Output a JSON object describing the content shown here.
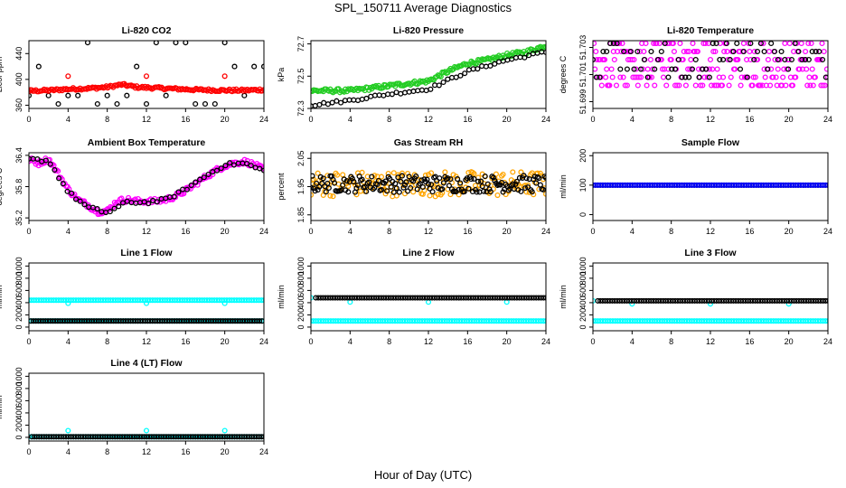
{
  "figure": {
    "title": "SPL_150711  Average Diagnostics",
    "xlabel": "Hour of Day (UTC)"
  },
  "colors": {
    "black": "#000000",
    "red": "#ff0000",
    "green": "#22cc22",
    "magenta": "#ff00ff",
    "orange": "#ffa500",
    "cyan": "#00ffff",
    "blue": "#0000ff"
  },
  "chart_data": [
    {
      "type": "scatter",
      "title": "Li-820 CO2",
      "ylabel": "Licor ppm",
      "xlim": [
        0,
        24
      ],
      "ylim": [
        355,
        460
      ],
      "xticks": [
        0,
        4,
        8,
        12,
        16,
        20,
        24
      ],
      "yticks": [
        360,
        400,
        440
      ],
      "series": [
        {
          "color": "black",
          "style": "discrete",
          "levels": [
            457,
            420,
            375,
            362
          ],
          "x_step": 1.0
        },
        {
          "color": "red",
          "style": "band",
          "points": [
            [
              0,
              382
            ],
            [
              2,
              383
            ],
            [
              4,
              385
            ],
            [
              6,
              386
            ],
            [
              8,
              388
            ],
            [
              9.5,
              392
            ],
            [
              11,
              388
            ],
            [
              14,
              386
            ],
            [
              17,
              384
            ],
            [
              20,
              383
            ],
            [
              22,
              383
            ],
            [
              24,
              384
            ]
          ],
          "spread": 2
        },
        {
          "color": "red",
          "style": "spikes",
          "points": [
            [
              4,
              405
            ],
            [
              12,
              405
            ],
            [
              20,
              405
            ]
          ]
        }
      ]
    },
    {
      "type": "scatter",
      "title": "Li-820 Pressure",
      "ylabel": "kPa",
      "xlim": [
        0,
        24
      ],
      "ylim": [
        72.3,
        72.72
      ],
      "xticks": [
        0,
        4,
        8,
        12,
        16,
        20,
        24
      ],
      "yticks": [
        72.3,
        72.5,
        72.7
      ],
      "series": [
        {
          "color": "green",
          "style": "band",
          "points": [
            [
              0,
              72.41
            ],
            [
              4,
              72.41
            ],
            [
              8,
              72.44
            ],
            [
              12,
              72.47
            ],
            [
              14,
              72.53
            ],
            [
              16,
              72.58
            ],
            [
              18,
              72.6
            ],
            [
              20,
              72.63
            ],
            [
              22,
              72.65
            ],
            [
              24,
              72.69
            ]
          ],
          "spread": 0.012
        },
        {
          "color": "black",
          "style": "line-points",
          "points": [
            [
              0,
              72.32
            ],
            [
              4,
              72.35
            ],
            [
              8,
              72.39
            ],
            [
              12,
              72.42
            ],
            [
              16,
              72.53
            ],
            [
              20,
              72.6
            ],
            [
              24,
              72.65
            ]
          ],
          "spread": 0.008
        }
      ]
    },
    {
      "type": "scatter",
      "title": "Li-820 Temperature",
      "ylabel": "degrees C",
      "xlim": [
        0,
        24
      ],
      "ylim": [
        51.6985,
        51.7035
      ],
      "xticks": [
        0,
        4,
        8,
        12,
        16,
        20,
        24
      ],
      "yticks": [
        51.699,
        51.701,
        51.703
      ],
      "series": [
        {
          "color": "magenta",
          "style": "discrete",
          "levels": [
            51.7033,
            51.7027,
            51.7021,
            51.7014,
            51.7008,
            51.7002
          ],
          "x_step": 0.1
        },
        {
          "color": "black",
          "style": "discrete",
          "levels": [
            51.7033,
            51.7027,
            51.7021,
            51.7014,
            51.7008
          ],
          "x_step": 0.35
        }
      ]
    },
    {
      "type": "scatter",
      "title": "Ambient Box Temperature",
      "ylabel": "degrees C",
      "xlim": [
        0,
        24
      ],
      "ylim": [
        35.15,
        36.45
      ],
      "xticks": [
        0,
        4,
        8,
        12,
        16,
        20,
        24
      ],
      "yticks": [
        35.2,
        35.8,
        36.4
      ],
      "series": [
        {
          "color": "magenta",
          "style": "band",
          "points": [
            [
              0,
              36.32
            ],
            [
              1,
              36.25
            ],
            [
              2,
              36.33
            ],
            [
              3,
              36.05
            ],
            [
              4,
              35.75
            ],
            [
              5,
              35.55
            ],
            [
              6,
              35.45
            ],
            [
              7,
              35.32
            ],
            [
              8,
              35.33
            ],
            [
              9,
              35.52
            ],
            [
              10,
              35.55
            ],
            [
              11,
              35.52
            ],
            [
              12,
              35.52
            ],
            [
              13,
              35.52
            ],
            [
              14,
              35.55
            ],
            [
              15,
              35.62
            ],
            [
              16,
              35.72
            ],
            [
              17,
              35.85
            ],
            [
              18,
              35.98
            ],
            [
              19,
              36.1
            ],
            [
              20,
              36.2
            ],
            [
              21,
              36.25
            ],
            [
              22,
              36.28
            ],
            [
              23,
              36.22
            ],
            [
              24,
              36.12
            ]
          ],
          "spread": 0.05
        },
        {
          "color": "black",
          "style": "line-points",
          "points": [
            [
              0,
              36.32
            ],
            [
              2,
              36.3
            ],
            [
              4,
              35.7
            ],
            [
              6,
              35.4
            ],
            [
              8,
              35.3
            ],
            [
              10,
              35.5
            ],
            [
              12,
              35.5
            ],
            [
              14,
              35.55
            ],
            [
              16,
              35.75
            ],
            [
              18,
              36.0
            ],
            [
              20,
              36.22
            ],
            [
              22,
              36.25
            ],
            [
              24,
              36.1
            ]
          ],
          "spread": 0.03
        }
      ]
    },
    {
      "type": "scatter",
      "title": "Gas Stream RH",
      "ylabel": "percent",
      "xlim": [
        0,
        24
      ],
      "ylim": [
        1.83,
        2.07
      ],
      "xticks": [
        0,
        4,
        8,
        12,
        16,
        20,
        24
      ],
      "yticks": [
        1.85,
        1.95,
        2.05
      ],
      "series": [
        {
          "color": "orange",
          "style": "band",
          "points": [
            [
              0,
              1.96
            ],
            [
              12,
              1.96
            ],
            [
              24,
              1.96
            ]
          ],
          "spread": 0.045
        },
        {
          "color": "black",
          "style": "band",
          "points": [
            [
              0,
              1.96
            ],
            [
              12,
              1.96
            ],
            [
              24,
              1.96
            ]
          ],
          "spread": 0.03
        }
      ]
    },
    {
      "type": "scatter",
      "title": "Sample Flow",
      "ylabel": "ml/min",
      "xlim": [
        0,
        24
      ],
      "ylim": [
        -20,
        210
      ],
      "xticks": [
        0,
        4,
        8,
        12,
        16,
        20,
        24
      ],
      "yticks": [
        0,
        100,
        200
      ],
      "series": [
        {
          "color": "black",
          "style": "band",
          "points": [
            [
              0,
              100
            ],
            [
              24,
              100
            ]
          ],
          "spread": 0
        },
        {
          "color": "blue",
          "style": "band",
          "points": [
            [
              0,
              100
            ],
            [
              24,
              100
            ]
          ],
          "spread": 0
        }
      ]
    },
    {
      "type": "scatter",
      "title": "Line 1 Flow",
      "ylabel": "ml/min",
      "xlim": [
        0,
        24
      ],
      "ylim": [
        -60,
        1050
      ],
      "xticks": [
        0,
        4,
        8,
        12,
        16,
        20,
        24
      ],
      "yticks": [
        0,
        200,
        400,
        600,
        800,
        1000
      ],
      "series": [
        {
          "color": "cyan",
          "style": "band",
          "points": [
            [
              0,
              440
            ],
            [
              24,
              440
            ]
          ],
          "spread": 0
        },
        {
          "color": "cyan",
          "style": "spikes",
          "points": [
            [
              4,
              390
            ],
            [
              12,
              390
            ],
            [
              20,
              390
            ]
          ]
        },
        {
          "color": "cyan",
          "style": "band",
          "points": [
            [
              0,
              100
            ],
            [
              24,
              100
            ]
          ],
          "spread": 0
        },
        {
          "color": "black",
          "style": "band",
          "points": [
            [
              0.2,
              100
            ],
            [
              23.8,
              100
            ]
          ],
          "spread": 0
        }
      ]
    },
    {
      "type": "scatter",
      "title": "Line 2 Flow",
      "ylabel": "ml/min",
      "xlim": [
        0,
        24
      ],
      "ylim": [
        -60,
        1050
      ],
      "xticks": [
        0,
        4,
        8,
        12,
        16,
        20,
        24
      ],
      "yticks": [
        0,
        200,
        400,
        600,
        800,
        1000
      ],
      "series": [
        {
          "color": "cyan",
          "style": "band",
          "points": [
            [
              0,
              100
            ],
            [
              24,
              100
            ]
          ],
          "spread": 0
        },
        {
          "color": "cyan",
          "style": "spikes",
          "points": [
            [
              0,
              480
            ],
            [
              4,
              410
            ],
            [
              12,
              410
            ],
            [
              20,
              410
            ]
          ]
        },
        {
          "color": "black",
          "style": "band",
          "points": [
            [
              0.5,
              480
            ],
            [
              24,
              480
            ]
          ],
          "spread": 0
        }
      ]
    },
    {
      "type": "scatter",
      "title": "Line 3 Flow",
      "ylabel": "ml/min",
      "xlim": [
        0,
        24
      ],
      "ylim": [
        -60,
        1050
      ],
      "xticks": [
        0,
        4,
        8,
        12,
        16,
        20,
        24
      ],
      "yticks": [
        0,
        200,
        400,
        600,
        800,
        1000
      ],
      "series": [
        {
          "color": "cyan",
          "style": "band",
          "points": [
            [
              0,
              100
            ],
            [
              24,
              100
            ]
          ],
          "spread": 0
        },
        {
          "color": "cyan",
          "style": "spikes",
          "points": [
            [
              0,
              430
            ],
            [
              4,
              380
            ],
            [
              12,
              380
            ],
            [
              20,
              380
            ]
          ]
        },
        {
          "color": "black",
          "style": "band",
          "points": [
            [
              0.5,
              430
            ],
            [
              24,
              430
            ]
          ],
          "spread": 0
        }
      ]
    },
    {
      "type": "scatter",
      "title": "Line 4 (LT) Flow",
      "ylabel": "ml/min",
      "xlim": [
        0,
        24
      ],
      "ylim": [
        -60,
        1050
      ],
      "xticks": [
        0,
        4,
        8,
        12,
        16,
        20,
        24
      ],
      "yticks": [
        0,
        200,
        400,
        600,
        800,
        1000
      ],
      "series": [
        {
          "color": "cyan",
          "style": "band",
          "points": [
            [
              0,
              10
            ],
            [
              24,
              10
            ]
          ],
          "spread": 0
        },
        {
          "color": "cyan",
          "style": "spikes",
          "points": [
            [
              4,
              110
            ],
            [
              12,
              110
            ],
            [
              20,
              110
            ]
          ]
        },
        {
          "color": "black",
          "style": "band",
          "points": [
            [
              0.3,
              10
            ],
            [
              24,
              10
            ]
          ],
          "spread": 0
        }
      ]
    }
  ]
}
